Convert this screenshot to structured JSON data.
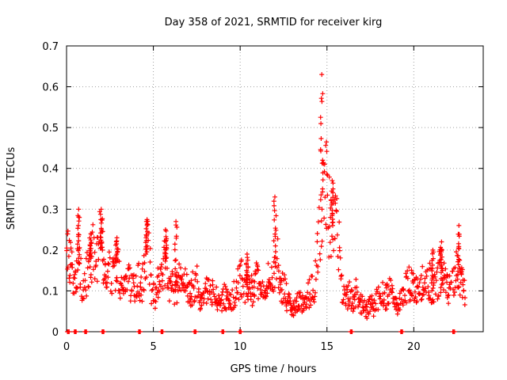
{
  "chart_data": {
    "type": "scatter",
    "title": "Day 358 of 2021, SRMTID for receiver kirg",
    "xlabel": "GPS time / hours",
    "ylabel": "SRMTID / TECUs",
    "xlim": [
      0,
      24
    ],
    "ylim": [
      0,
      0.7
    ],
    "grid": true,
    "marker": "+",
    "series_color": "#ff0000",
    "xticks": [
      0,
      5,
      10,
      15,
      20
    ],
    "xtick_labels": [
      "0",
      "5",
      "10",
      "15",
      "20"
    ],
    "yticks": [
      0,
      0.1,
      0.2,
      0.3,
      0.4,
      0.5,
      0.6,
      0.7
    ],
    "ytick_labels": [
      "0",
      "0.1",
      "0.2",
      "0.3",
      "0.4",
      "0.5",
      "0.6",
      "0.7"
    ],
    "zero_points_x": [
      0.1,
      0.5,
      1.1,
      2.1,
      4.2,
      5.5,
      7.4,
      9.0,
      10.0,
      16.4,
      19.3,
      22.3
    ],
    "series": [
      {
        "name": "SRMTID",
        "profile_x": [
          0,
          0.3,
          0.5,
          0.7,
          0.9,
          1.1,
          1.3,
          1.5,
          1.7,
          1.9,
          2.1,
          2.3,
          2.5,
          2.7,
          2.9,
          3.1,
          3.3,
          3.5,
          3.7,
          3.9,
          4.1,
          4.3,
          4.5,
          4.7,
          4.9,
          5.1,
          5.3,
          5.5,
          5.7,
          5.9,
          6.1,
          6.3,
          6.5,
          6.7,
          6.9,
          7.1,
          7.3,
          7.5,
          7.7,
          7.9,
          8.1,
          8.3,
          8.5,
          8.7,
          8.9,
          9.1,
          9.3,
          9.5,
          9.7,
          9.9,
          10.1,
          10.3,
          10.5,
          10.7,
          10.9,
          11.1,
          11.3,
          11.5,
          11.7,
          11.9,
          12.1,
          12.3,
          12.5,
          12.7,
          12.9,
          13.1,
          13.3,
          13.5,
          13.7,
          13.9,
          14.1,
          14.3,
          14.5,
          14.7,
          14.9,
          15.1,
          15.3,
          15.5,
          15.7,
          15.9,
          16.1,
          16.3,
          16.5,
          16.7,
          16.9,
          17.1,
          17.3,
          17.5,
          17.7,
          17.9,
          18.1,
          18.3,
          18.5,
          18.7,
          18.9,
          19.1,
          19.3,
          19.5,
          19.7,
          19.9,
          20.1,
          20.3,
          20.5,
          20.7,
          20.9,
          21.1,
          21.3,
          21.5,
          21.7,
          21.9,
          22.1,
          22.3,
          22.5,
          22.7,
          22.9
        ],
        "profile_y": [
          0.2,
          0.15,
          0.13,
          0.18,
          0.12,
          0.13,
          0.16,
          0.2,
          0.15,
          0.22,
          0.18,
          0.1,
          0.15,
          0.13,
          0.17,
          0.12,
          0.1,
          0.13,
          0.11,
          0.1,
          0.14,
          0.1,
          0.16,
          0.22,
          0.1,
          0.08,
          0.12,
          0.15,
          0.18,
          0.12,
          0.11,
          0.1,
          0.13,
          0.1,
          0.12,
          0.09,
          0.11,
          0.12,
          0.07,
          0.08,
          0.1,
          0.09,
          0.1,
          0.08,
          0.07,
          0.09,
          0.08,
          0.08,
          0.1,
          0.12,
          0.13,
          0.1,
          0.12,
          0.1,
          0.14,
          0.1,
          0.09,
          0.12,
          0.15,
          0.12,
          0.2,
          0.1,
          0.11,
          0.08,
          0.07,
          0.06,
          0.07,
          0.07,
          0.06,
          0.09,
          0.1,
          0.12,
          0.2,
          0.3,
          0.42,
          0.28,
          0.26,
          0.3,
          0.2,
          0.1,
          0.08,
          0.09,
          0.07,
          0.1,
          0.07,
          0.06,
          0.05,
          0.07,
          0.06,
          0.08,
          0.1,
          0.08,
          0.09,
          0.1,
          0.07,
          0.06,
          0.08,
          0.1,
          0.12,
          0.11,
          0.1,
          0.1,
          0.12,
          0.11,
          0.13,
          0.1,
          0.11,
          0.15,
          0.14,
          0.12,
          0.1,
          0.12,
          0.15,
          0.13,
          0.1
        ],
        "spikes": [
          {
            "x": 0.7,
            "y": 0.3
          },
          {
            "x": 1.4,
            "y": 0.24
          },
          {
            "x": 2.0,
            "y": 0.3
          },
          {
            "x": 2.9,
            "y": 0.23
          },
          {
            "x": 4.6,
            "y": 0.27
          },
          {
            "x": 5.7,
            "y": 0.25
          },
          {
            "x": 6.3,
            "y": 0.27
          },
          {
            "x": 10.4,
            "y": 0.19
          },
          {
            "x": 12.0,
            "y": 0.33
          },
          {
            "x": 14.7,
            "y": 0.63
          },
          {
            "x": 15.3,
            "y": 0.37
          },
          {
            "x": 21.1,
            "y": 0.2
          },
          {
            "x": 21.6,
            "y": 0.22
          },
          {
            "x": 22.6,
            "y": 0.26
          }
        ]
      }
    ]
  }
}
